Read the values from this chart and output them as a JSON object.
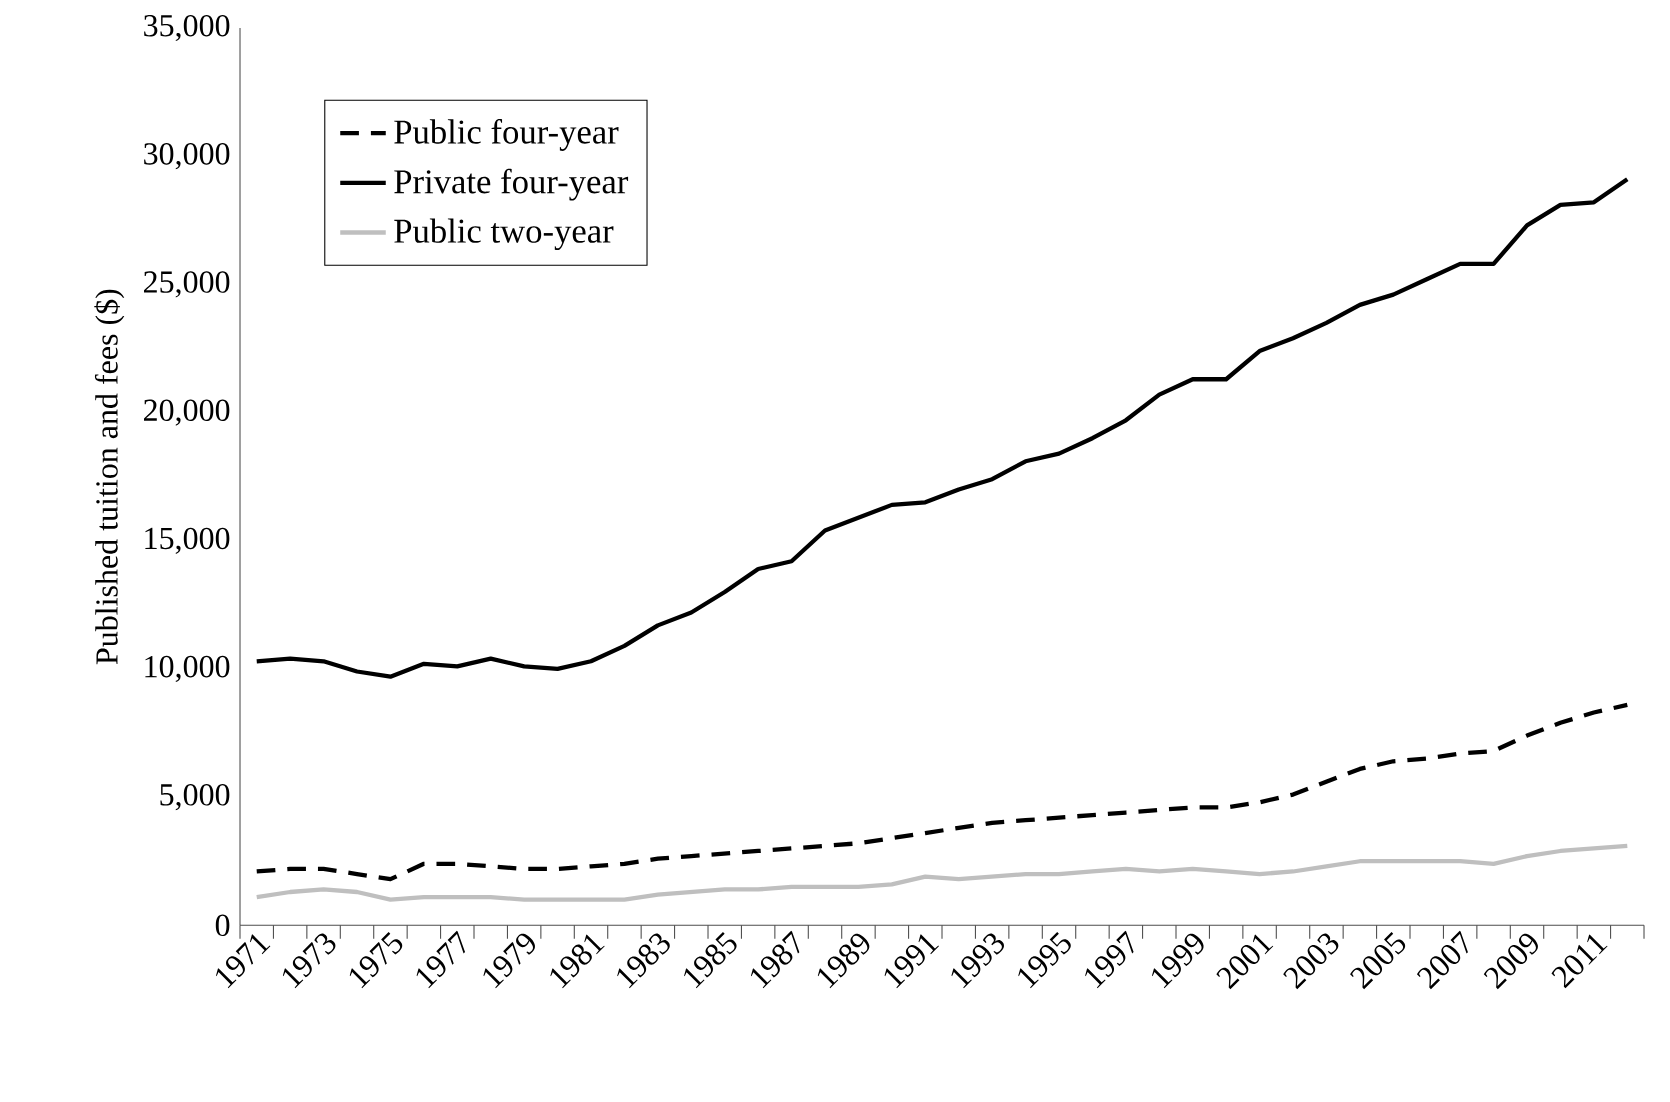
{
  "chart_data": {
    "type": "line",
    "ylabel": "Published tuition and fees ($)",
    "categories": [
      "1971",
      null,
      "1973",
      null,
      "1975",
      null,
      "1977",
      null,
      "1979",
      null,
      "1981",
      null,
      "1983",
      null,
      "1985",
      null,
      "1987",
      null,
      "1989",
      null,
      "1991",
      null,
      "1993",
      null,
      "1995",
      null,
      "1997",
      null,
      "1999",
      null,
      "2001",
      null,
      "2003",
      null,
      "2005",
      null,
      "2007",
      null,
      "2009",
      null,
      "2011",
      null
    ],
    "series": [
      {
        "name": "Public four-year",
        "color": "#000000",
        "line_style": "dashed",
        "values": [
          2100,
          2200,
          2200,
          2000,
          1800,
          2400,
          2400,
          2300,
          2200,
          2200,
          2300,
          2400,
          2600,
          2700,
          2800,
          2900,
          3000,
          3100,
          3200,
          3400,
          3600,
          3800,
          4000,
          4100,
          4200,
          4300,
          4400,
          4500,
          4600,
          4600,
          4800,
          5100,
          5600,
          6100,
          6400,
          6500,
          6700,
          6800,
          7400,
          7900,
          8300,
          8600
        ]
      },
      {
        "name": "Private four-year",
        "color": "#000000",
        "line_style": "solid",
        "values": [
          10300,
          10400,
          10300,
          9900,
          9700,
          10200,
          10100,
          10400,
          10100,
          10000,
          10300,
          10900,
          11700,
          12200,
          13000,
          13900,
          14200,
          15400,
          15900,
          16400,
          16500,
          17000,
          17400,
          18100,
          18400,
          19000,
          19700,
          20700,
          21300,
          21300,
          22400,
          22900,
          23500,
          24200,
          24600,
          25200,
          25800,
          25800,
          27300,
          28100,
          28200,
          29100
        ]
      },
      {
        "name": "Public two-year",
        "color": "#bfbfbf",
        "line_style": "solid",
        "values": [
          1100,
          1300,
          1400,
          1300,
          1000,
          1100,
          1100,
          1100,
          1000,
          1000,
          1000,
          1000,
          1200,
          1300,
          1400,
          1400,
          1500,
          1500,
          1500,
          1600,
          1900,
          1800,
          1900,
          2000,
          2000,
          2100,
          2200,
          2100,
          2200,
          2100,
          2000,
          2100,
          2300,
          2500,
          2500,
          2500,
          2500,
          2400,
          2700,
          2900,
          3000,
          3100
        ]
      }
    ],
    "ylim": [
      0,
      35000
    ],
    "yticks": [
      0,
      {
        "value": 5000,
        "label": "5,000"
      },
      {
        "value": 10000,
        "label": "10,000"
      },
      {
        "value": 15000,
        "label": "15,000"
      },
      {
        "value": 20000,
        "label": "20,000"
      },
      {
        "value": 25000,
        "label": "25,000"
      },
      {
        "value": 30000,
        "label": "30,000"
      },
      {
        "value": 35000,
        "label": "35,000"
      }
    ],
    "grid": false,
    "legend": "top left",
    "marker": "none"
  }
}
